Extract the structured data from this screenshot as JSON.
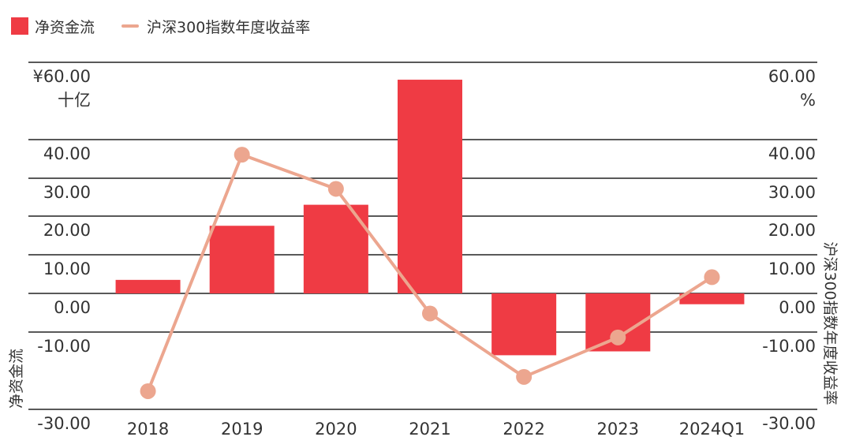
{
  "legend": {
    "bar_label": "净资金流",
    "line_label": "沪深300指数年度收益率"
  },
  "colors": {
    "bar": "#ef3b44",
    "line": "#eca68f",
    "grid": "#222222"
  },
  "chart_data": {
    "type": "bar",
    "categories": [
      "2018",
      "2019",
      "2020",
      "2021",
      "2022",
      "2023",
      "2024Q1"
    ],
    "series": [
      {
        "name": "净资金流",
        "kind": "bar",
        "axis": "left",
        "values": [
          3.5,
          17.5,
          23.0,
          55.5,
          -16.0,
          -15.0,
          -2.8
        ]
      },
      {
        "name": "沪深300指数年度收益率",
        "kind": "line",
        "axis": "right",
        "values": [
          -25.3,
          36.1,
          27.2,
          -5.2,
          -21.6,
          -11.4,
          4.2
        ]
      }
    ],
    "left_axis": {
      "ticks": [
        "-30.00",
        "-10.00",
        "0.00",
        "10.00",
        "20.00",
        "30.00",
        "40.00",
        "¥60.00"
      ],
      "unit": "十亿",
      "title": "净资金流"
    },
    "right_axis": {
      "ticks": [
        "-30.00",
        "-10.00",
        "0.00",
        "10.00",
        "20.00",
        "30.00",
        "40.00",
        "60.00"
      ],
      "unit": "%",
      "title": "沪深300指数年度收益率"
    },
    "grid": true,
    "legend_position": "top-left"
  }
}
